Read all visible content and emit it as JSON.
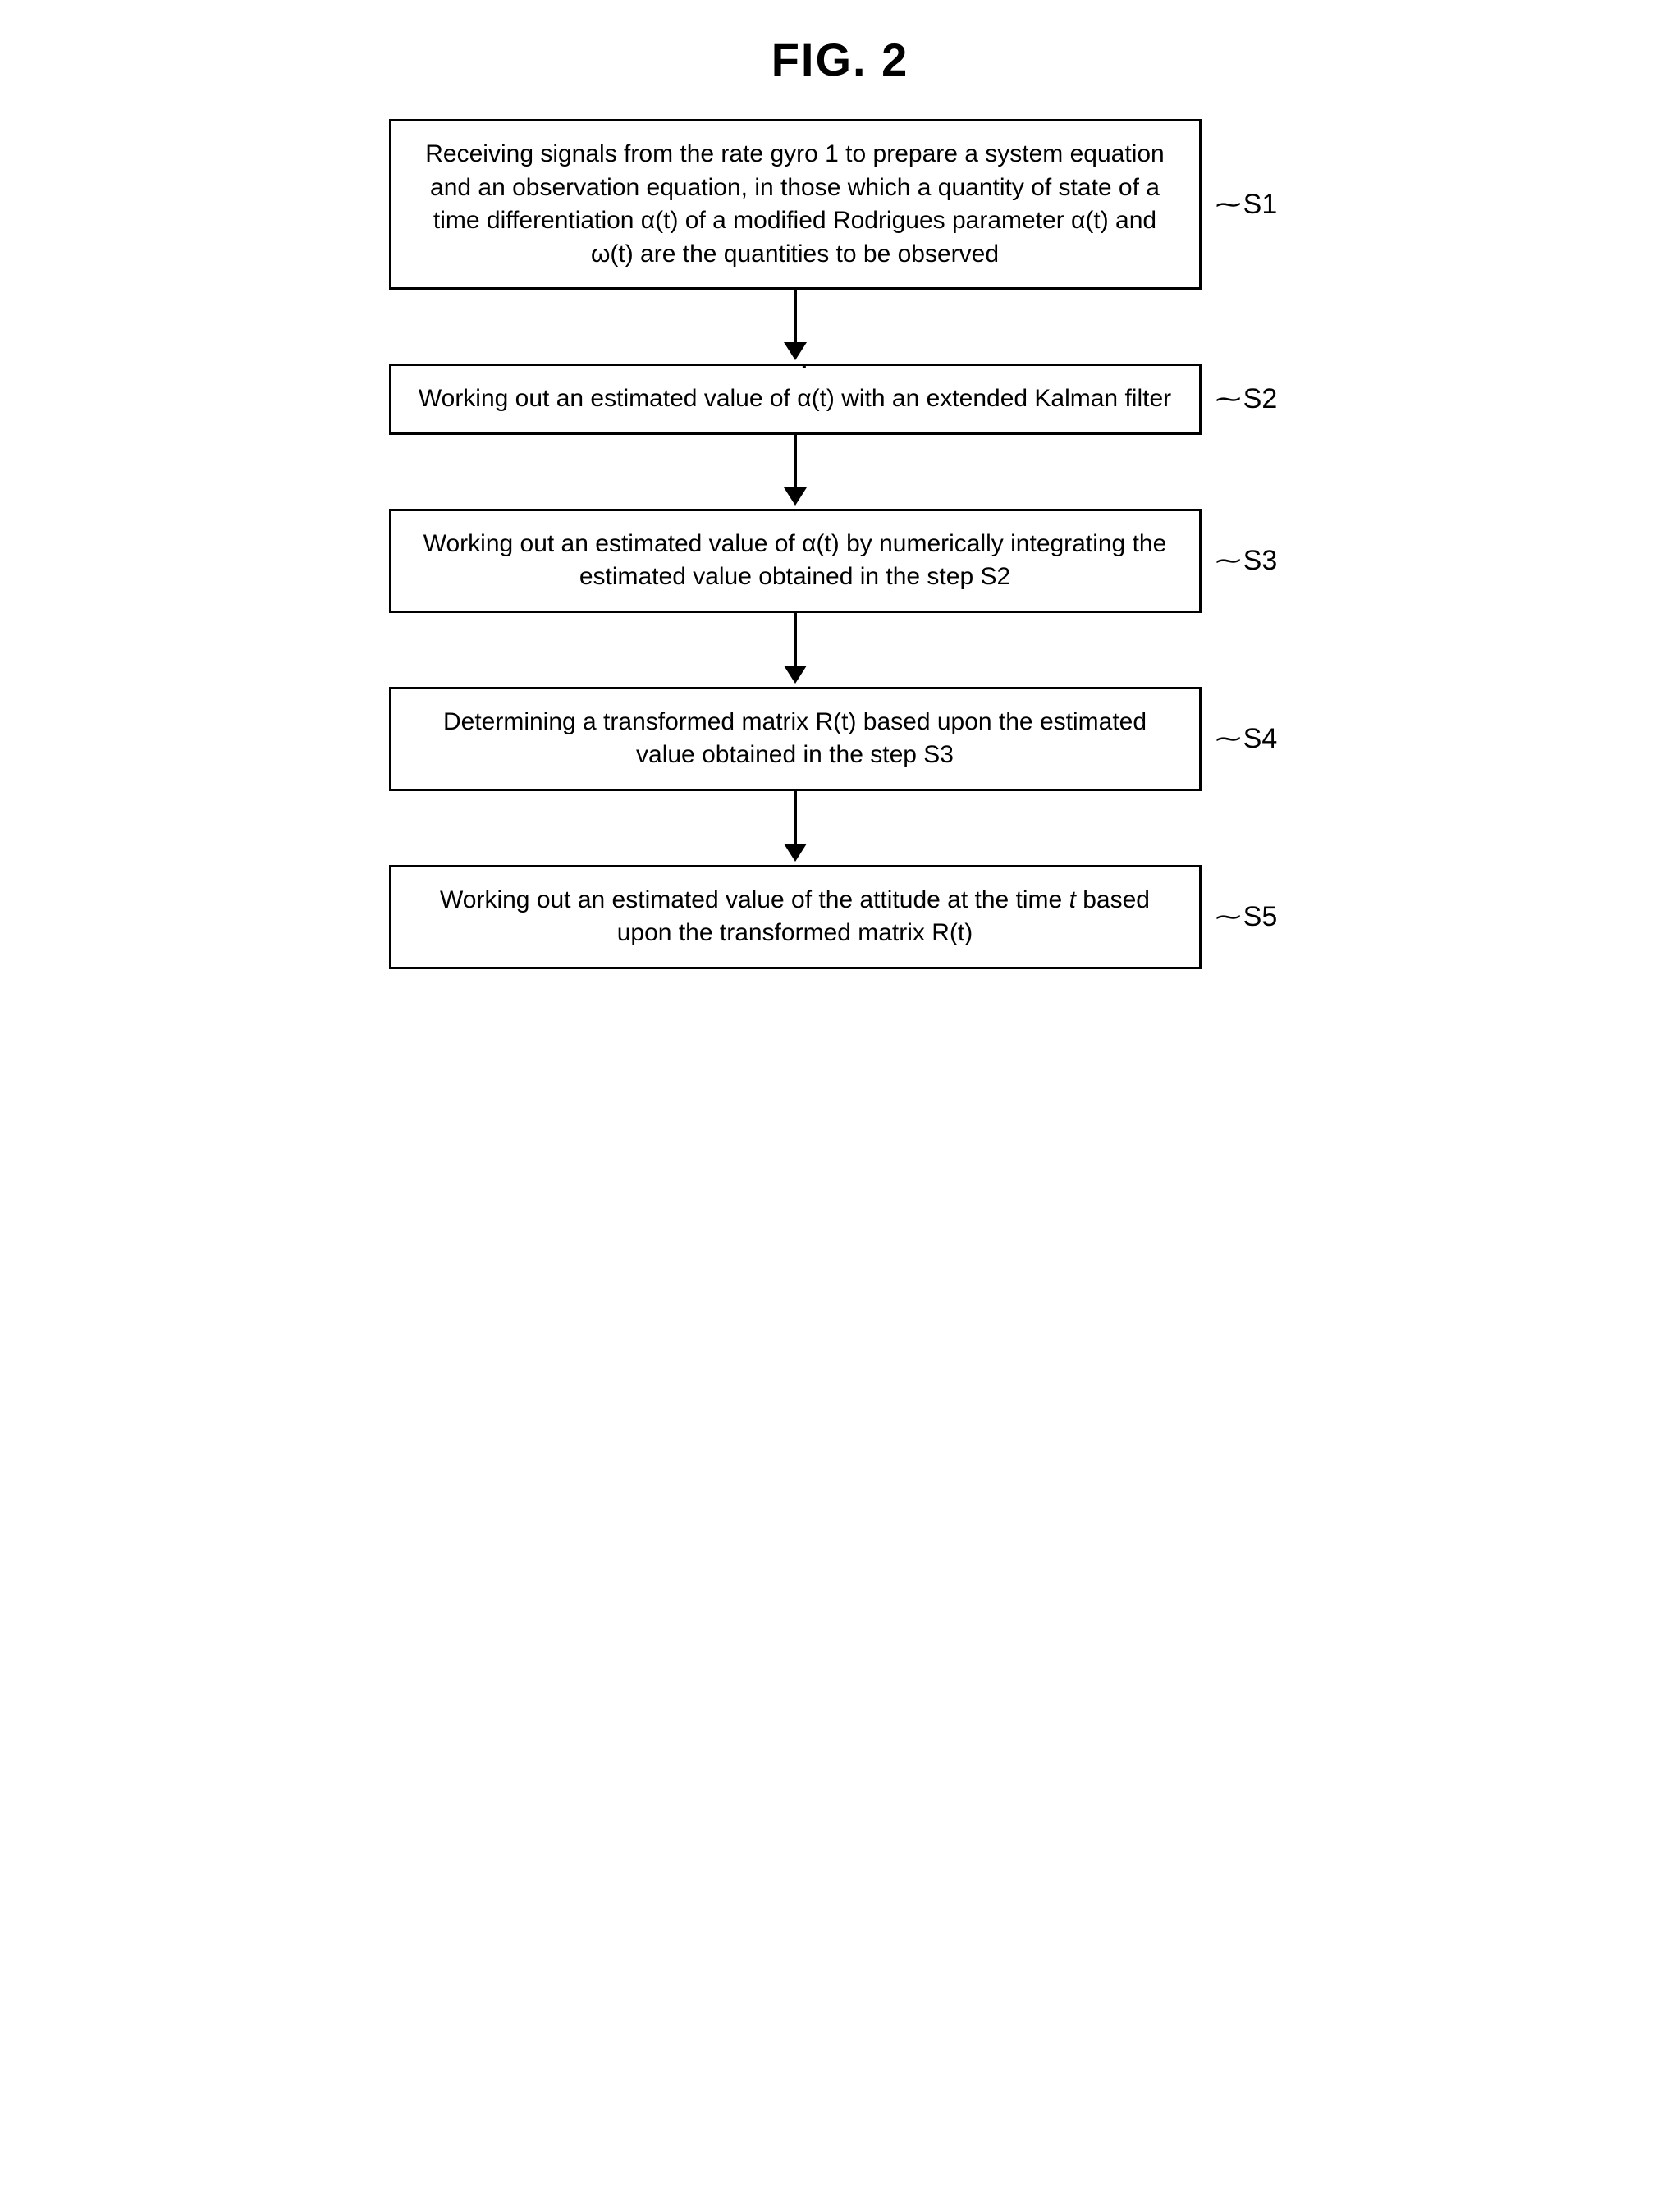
{
  "title": "FIG. 2",
  "steps": [
    {
      "label": "S1",
      "text_html": "Receiving signals from the rate gyro 1 to prepare a system equation and an observation equation, in those which a quantity of state of a time differentiation α(t) of a modified Rodrigues parameter α(t) and ω(t) are the quantities to be observed"
    },
    {
      "label": "S2",
      "text_html": "Working out an estimated value of <span class=\"dot-over\">α</span>(t) with an extended Kalman filter"
    },
    {
      "label": "S3",
      "text_html": "Working out an estimated value of α(t) by numerically integrating the estimated value obtained in the step S2"
    },
    {
      "label": "S4",
      "text_html": "Determining a transformed matrix R(t) based upon the estimated value obtained in the step S3"
    },
    {
      "label": "S5",
      "text_html": "Working out an estimated value of the attitude at the time <span class=\"italic\">t</span> based upon the transformed matrix R(t)"
    }
  ],
  "box_border_color": "#000000",
  "arrow_color": "#000000",
  "background_color": "#ffffff",
  "title_fontsize": 56,
  "step_fontsize": 30,
  "label_fontsize": 34,
  "box_border_width": 3,
  "arrow_line_width": 4,
  "arrow_length": 64,
  "arrow_head_size": 22
}
